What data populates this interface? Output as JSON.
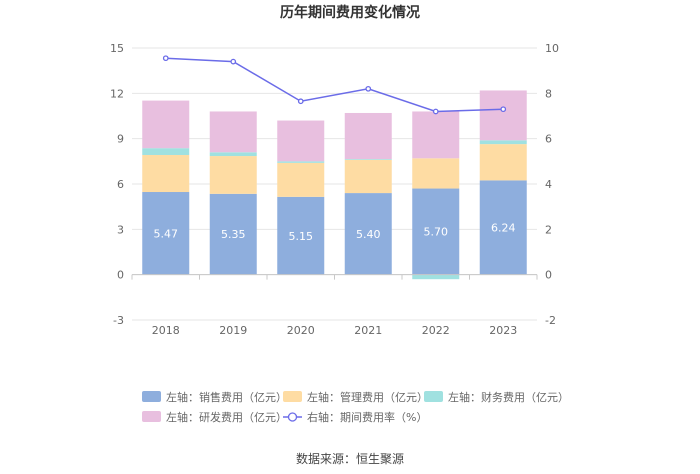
{
  "chart_data": {
    "type": "bar",
    "title": "历年期间费用变化情况",
    "categories": [
      "2018",
      "2019",
      "2020",
      "2021",
      "2022",
      "2023"
    ],
    "series": [
      {
        "name": "左轴：销售费用（亿元）",
        "axis": "left",
        "kind": "bar",
        "color": "#8eaedd",
        "values": [
          5.47,
          5.35,
          5.15,
          5.4,
          5.7,
          6.24
        ]
      },
      {
        "name": "左轴：管理费用（亿元）",
        "axis": "left",
        "kind": "bar",
        "color": "#fedca3",
        "values": [
          2.45,
          2.5,
          2.25,
          2.2,
          2.0,
          2.4
        ]
      },
      {
        "name": "左轴：财务费用（亿元）",
        "axis": "left",
        "kind": "bar",
        "color": "#a0e1e0",
        "values": [
          0.45,
          0.25,
          0.1,
          0.05,
          -0.3,
          0.25
        ]
      },
      {
        "name": "左轴：研发费用（亿元）",
        "axis": "left",
        "kind": "bar",
        "color": "#e8bfdf",
        "values": [
          3.15,
          2.7,
          2.7,
          3.05,
          3.1,
          3.3
        ]
      },
      {
        "name": "右轴：期间费用率（%）",
        "axis": "right",
        "kind": "line",
        "color": "#6b6ce8",
        "values": [
          9.55,
          9.4,
          7.65,
          8.2,
          7.2,
          7.3
        ]
      }
    ],
    "bar_labels": [
      "5.47",
      "5.35",
      "5.15",
      "5.40",
      "5.70",
      "6.24"
    ],
    "left_axis": {
      "ylim": [
        -3,
        15
      ],
      "ticks": [
        "-3",
        "0",
        "3",
        "6",
        "9",
        "12",
        "15"
      ]
    },
    "right_axis": {
      "ylim": [
        -2,
        10
      ],
      "ticks": [
        "-2",
        "0",
        "2",
        "4",
        "6",
        "8",
        "10"
      ]
    },
    "legend_position": "bottom"
  },
  "source": "数据来源：恒生聚源"
}
